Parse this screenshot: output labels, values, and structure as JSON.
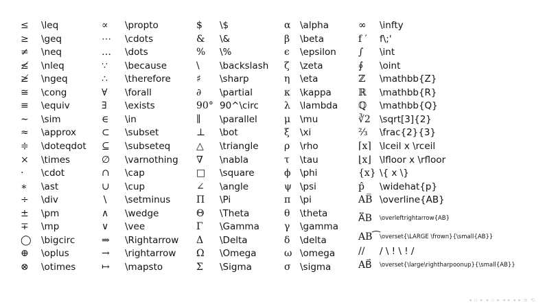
{
  "columns": [
    {
      "items": [
        {
          "symbol": "≤",
          "command": "\\leq"
        },
        {
          "symbol": "≥",
          "command": "\\geq"
        },
        {
          "symbol": "≠",
          "command": "\\neq"
        },
        {
          "symbol": "≰",
          "command": "\\nleq"
        },
        {
          "symbol": "≱",
          "command": "\\ngeq"
        },
        {
          "symbol": "≅",
          "command": "\\cong"
        },
        {
          "symbol": "≡",
          "command": "\\equiv"
        },
        {
          "symbol": "∼",
          "command": "\\sim"
        },
        {
          "symbol": "≈",
          "command": "\\approx"
        },
        {
          "symbol": "≑",
          "command": "\\doteqdot"
        },
        {
          "symbol": "×",
          "command": "\\times"
        },
        {
          "symbol": "·",
          "command": "\\cdot"
        },
        {
          "symbol": "∗",
          "command": "\\ast"
        },
        {
          "symbol": "÷",
          "command": "\\div"
        },
        {
          "symbol": "±",
          "command": "\\pm"
        },
        {
          "symbol": "∓",
          "command": "\\mp"
        },
        {
          "symbol": "◯",
          "command": "\\bigcirc"
        },
        {
          "symbol": "⊕",
          "command": "\\oplus"
        },
        {
          "symbol": "⊗",
          "command": "\\otimes"
        }
      ]
    },
    {
      "items": [
        {
          "symbol": "∝",
          "command": "\\propto"
        },
        {
          "symbol": "⋯",
          "command": "\\cdots"
        },
        {
          "symbol": "…",
          "command": "\\dots"
        },
        {
          "symbol": "∵",
          "command": "\\because"
        },
        {
          "symbol": "∴",
          "command": "\\therefore"
        },
        {
          "symbol": "∀",
          "command": "\\forall"
        },
        {
          "symbol": "∃",
          "command": "\\exists"
        },
        {
          "symbol": "∈",
          "command": "\\in"
        },
        {
          "symbol": "⊂",
          "command": "\\subset"
        },
        {
          "symbol": "⊆",
          "command": "\\subseteq"
        },
        {
          "symbol": "∅",
          "command": "\\varnothing"
        },
        {
          "symbol": "∩",
          "command": "\\cap"
        },
        {
          "symbol": "∪",
          "command": "\\cup"
        },
        {
          "symbol": "∖",
          "command": "\\setminus"
        },
        {
          "symbol": "∧",
          "command": "\\wedge"
        },
        {
          "symbol": "∨",
          "command": "\\vee"
        },
        {
          "symbol": "⇒",
          "command": "\\Rightarrow"
        },
        {
          "symbol": "→",
          "command": "\\rightarrow"
        },
        {
          "symbol": "↦",
          "command": "\\mapsto"
        }
      ]
    },
    {
      "items": [
        {
          "symbol": "$",
          "command": "\\$"
        },
        {
          "symbol": "&",
          "command": "\\&"
        },
        {
          "symbol": "%",
          "command": "\\%"
        },
        {
          "symbol": "\\",
          "command": "\\backslash"
        },
        {
          "symbol": "♯",
          "command": "\\sharp"
        },
        {
          "symbol": "∂",
          "command": "\\partial"
        },
        {
          "symbol": "90°",
          "command": "90^\\circ"
        },
        {
          "symbol": "∥",
          "command": "\\parallel"
        },
        {
          "symbol": "⊥",
          "command": "\\bot"
        },
        {
          "symbol": "△",
          "command": "\\triangle"
        },
        {
          "symbol": "∇",
          "command": "\\nabla"
        },
        {
          "symbol": "□",
          "command": "\\square"
        },
        {
          "symbol": "∠",
          "command": "\\angle"
        },
        {
          "symbol": "Π",
          "command": "\\Pi"
        },
        {
          "symbol": "Θ",
          "command": "\\Theta"
        },
        {
          "symbol": "Γ",
          "command": "\\Gamma"
        },
        {
          "symbol": "Δ",
          "command": "\\Delta"
        },
        {
          "symbol": "Ω",
          "command": "\\Omega"
        },
        {
          "symbol": "Σ",
          "command": "\\Sigma"
        }
      ]
    },
    {
      "items": [
        {
          "symbol": "α",
          "command": "\\alpha"
        },
        {
          "symbol": "β",
          "command": "\\beta"
        },
        {
          "symbol": "ϵ",
          "command": "\\epsilon"
        },
        {
          "symbol": "ζ",
          "command": "\\zeta"
        },
        {
          "symbol": "η",
          "command": "\\eta"
        },
        {
          "symbol": "κ",
          "command": "\\kappa"
        },
        {
          "symbol": "λ",
          "command": "\\lambda"
        },
        {
          "symbol": "μ",
          "command": "\\mu"
        },
        {
          "symbol": "ξ",
          "command": "\\xi"
        },
        {
          "symbol": "ρ",
          "command": "\\rho"
        },
        {
          "symbol": "τ",
          "command": "\\tau"
        },
        {
          "symbol": "ϕ",
          "command": "\\phi"
        },
        {
          "symbol": "ψ",
          "command": "\\psi"
        },
        {
          "symbol": "π",
          "command": "\\pi"
        },
        {
          "symbol": "θ",
          "command": "\\theta"
        },
        {
          "symbol": "γ",
          "command": "\\gamma"
        },
        {
          "symbol": "δ",
          "command": "\\delta"
        },
        {
          "symbol": "ω",
          "command": "\\omega"
        },
        {
          "symbol": "σ",
          "command": "\\sigma"
        }
      ]
    },
    {
      "items": [
        {
          "symbol": "∞",
          "command": "\\infty"
        },
        {
          "symbol": "f ′",
          "command": "f\\;'"
        },
        {
          "symbol": "∫",
          "command": "\\int"
        },
        {
          "symbol": "∮",
          "command": "\\oint"
        },
        {
          "symbol": "ℤ",
          "command": "\\mathbb{Z}"
        },
        {
          "symbol": "ℝ",
          "command": "\\mathbb{R}"
        },
        {
          "symbol": "ℚ",
          "command": "\\mathbb{Q}"
        },
        {
          "symbol": "∛2",
          "command": "\\sqrt[3]{2}"
        },
        {
          "symbol": "⅔",
          "command": "\\frac{2}{3}"
        },
        {
          "symbol": "⌈x⌉",
          "command": "\\lceil x \\rceil"
        },
        {
          "symbol": "⌊x⌋",
          "command": "\\lfloor x \\rfloor"
        },
        {
          "symbol": "{x}",
          "command": "\\{ x \\}"
        },
        {
          "symbol": "p̂",
          "command": "\\widehat{p}"
        },
        {
          "symbol": "AB̅",
          "command": "\\overline{AB}"
        },
        {
          "symbol": "A⃡B",
          "command": "\\overleftrightarrow{AB}"
        },
        {
          "symbol": "AB⁀",
          "command": "\\overset{\\LARGE \\frown}{\\small{AB}}"
        },
        {
          "symbol": "//",
          "command": "/ \\ ! \\ ! /"
        },
        {
          "symbol": "AB⃑",
          "command": "\\overset{\\large\\rightharpoonup}{\\small{AB}}"
        }
      ]
    }
  ],
  "footer": {
    "nav_controls": "◂ ▫ ▸ ◂ ▫ ▸ ◂ ▸ ◂ ▸ ≡ ⟲"
  }
}
